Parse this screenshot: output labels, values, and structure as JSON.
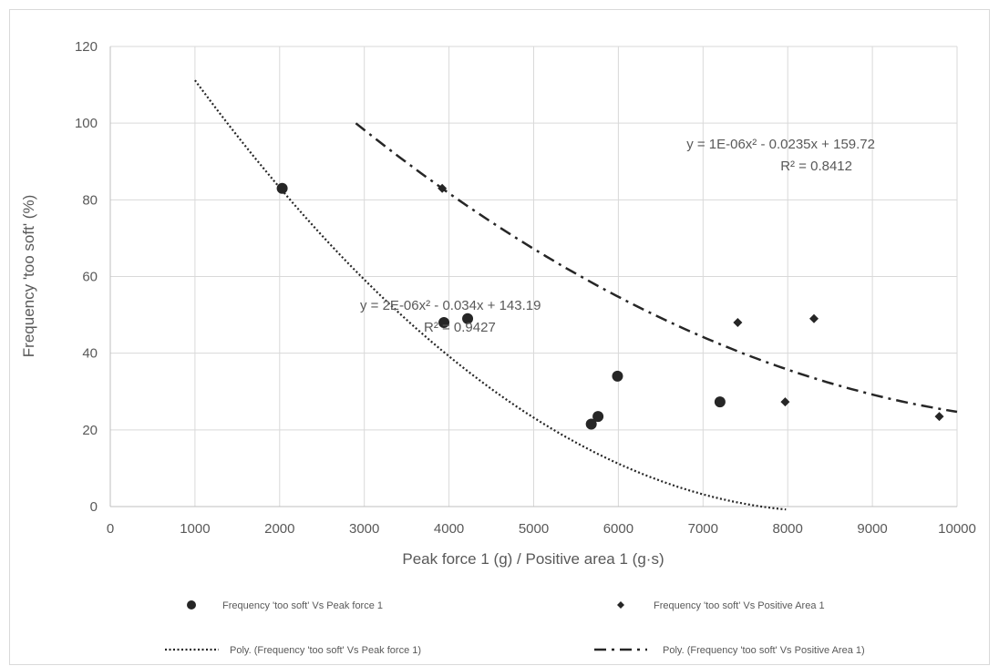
{
  "chart_data": {
    "type": "scatter",
    "title": "",
    "xlabel": "Peak force 1 (g) / Positive area 1 (g·s)",
    "ylabel": "Frequency 'too soft' (%)",
    "xlim": [
      0,
      10000
    ],
    "ylim": [
      0,
      120
    ],
    "x_ticks": [
      "0",
      "1000",
      "2000",
      "3000",
      "4000",
      "5000",
      "6000",
      "7000",
      "8000",
      "9000",
      "10000"
    ],
    "y_ticks": [
      "0",
      "20",
      "40",
      "60",
      "80",
      "100",
      "120"
    ],
    "grid": true,
    "legend_position": "bottom",
    "series": [
      {
        "name": "Frequency 'too soft' Vs Peak force 1",
        "marker": "circle",
        "color": "#262626",
        "points": [
          {
            "x": 2030,
            "y": 83
          },
          {
            "x": 3940,
            "y": 48
          },
          {
            "x": 4220,
            "y": 49
          },
          {
            "x": 5680,
            "y": 21.5
          },
          {
            "x": 5760,
            "y": 23.5
          },
          {
            "x": 5990,
            "y": 34
          },
          {
            "x": 7200,
            "y": 27.3
          }
        ]
      },
      {
        "name": "Frequency 'too soft' Vs Positive Area 1",
        "marker": "diamond",
        "color": "#262626",
        "points": [
          {
            "x": 3920,
            "y": 83
          },
          {
            "x": 7410,
            "y": 48
          },
          {
            "x": 8310,
            "y": 49
          },
          {
            "x": 7970,
            "y": 27.3
          },
          {
            "x": 9790,
            "y": 23.5
          }
        ]
      }
    ],
    "trendlines": [
      {
        "name": "Poly. (Frequency 'too soft' Vs Peak force 1)",
        "style": "dotted",
        "coefficients": {
          "a": 2e-06,
          "b": -0.034,
          "c": 143.19
        },
        "x_range": [
          1000,
          7980
        ],
        "equation": "y = 2E-06x² - 0.034x + 143.19",
        "r2": "R² = 0.9427"
      },
      {
        "name": "Poly. (Frequency 'too soft' Vs Positive Area 1)",
        "style": "dash-dot",
        "coefficients": {
          "a": 1e-06,
          "b": -0.0235,
          "c": 159.72
        },
        "x_range": [
          2900,
          10000
        ],
        "equation": "y = 1E-06x² - 0.0235x + 159.72",
        "r2": "R² = 0.8412"
      }
    ]
  }
}
